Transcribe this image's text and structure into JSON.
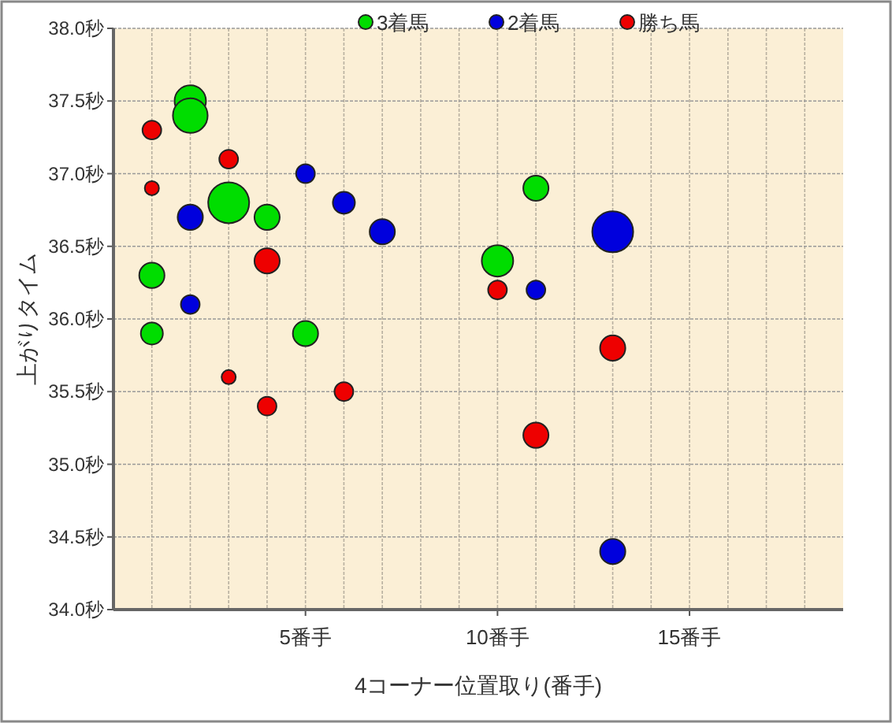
{
  "chart_data": {
    "type": "bubble",
    "xlabel": "4コーナー位置取り(番手)",
    "ylabel": "上がりタイム",
    "xlim": [
      0,
      19
    ],
    "ylim": [
      34,
      38
    ],
    "xticks": [
      {
        "value": 1,
        "label": null
      },
      {
        "value": 2,
        "label": null
      },
      {
        "value": 3,
        "label": null
      },
      {
        "value": 4,
        "label": null
      },
      {
        "value": 5,
        "label": "5番手"
      },
      {
        "value": 6,
        "label": null
      },
      {
        "value": 7,
        "label": null
      },
      {
        "value": 8,
        "label": null
      },
      {
        "value": 9,
        "label": null
      },
      {
        "value": 10,
        "label": "10番手"
      },
      {
        "value": 11,
        "label": null
      },
      {
        "value": 12,
        "label": null
      },
      {
        "value": 13,
        "label": null
      },
      {
        "value": 14,
        "label": null
      },
      {
        "value": 15,
        "label": "15番手"
      },
      {
        "value": 16,
        "label": null
      },
      {
        "value": 17,
        "label": null
      },
      {
        "value": 18,
        "label": null
      }
    ],
    "yticks": [
      {
        "value": 34,
        "label": "34.0秒"
      },
      {
        "value": 34.5,
        "label": "34.5秒"
      },
      {
        "value": 35,
        "label": "35.0秒"
      },
      {
        "value": 35.5,
        "label": "35.5秒"
      },
      {
        "value": 36,
        "label": "36.0秒"
      },
      {
        "value": 36.5,
        "label": "36.5秒"
      },
      {
        "value": 37,
        "label": "37.0秒"
      },
      {
        "value": 37.5,
        "label": "37.5秒"
      },
      {
        "value": 38,
        "label": "38.0秒"
      }
    ],
    "grid": true,
    "legend": "top",
    "marker": "circle",
    "series": [
      {
        "name": "3着馬",
        "color": "#00dd00",
        "x": [
          2,
          2,
          3,
          4,
          1,
          1,
          5,
          11,
          10
        ],
        "values": [
          37.5,
          37.4,
          36.8,
          36.7,
          36.3,
          35.9,
          35.9,
          36.9,
          36.4
        ],
        "sizes": [
          0.59,
          0.72,
          1,
          0.38,
          0.38,
          0.29,
          0.38,
          0.38,
          0.59
        ]
      },
      {
        "name": "2着馬",
        "color": "#0000dd",
        "x": [
          5,
          2,
          6,
          7,
          2,
          13,
          11,
          13
        ],
        "values": [
          37.0,
          36.7,
          36.8,
          36.6,
          36.1,
          36.6,
          36.2,
          34.4
        ],
        "sizes": [
          0.21,
          0.38,
          0.29,
          0.38,
          0.21,
          1,
          0.21,
          0.38
        ]
      },
      {
        "name": "勝ち馬",
        "color": "#ee0000",
        "x": [
          1,
          3,
          1,
          4,
          3,
          4,
          6,
          10,
          13,
          11
        ],
        "values": [
          37.3,
          37.1,
          36.9,
          36.4,
          35.6,
          35.4,
          35.5,
          36.2,
          35.8,
          35.2
        ],
        "sizes": [
          0.21,
          0.21,
          0.12,
          0.38,
          0.12,
          0.21,
          0.21,
          0.21,
          0.38,
          0.38
        ]
      }
    ]
  }
}
